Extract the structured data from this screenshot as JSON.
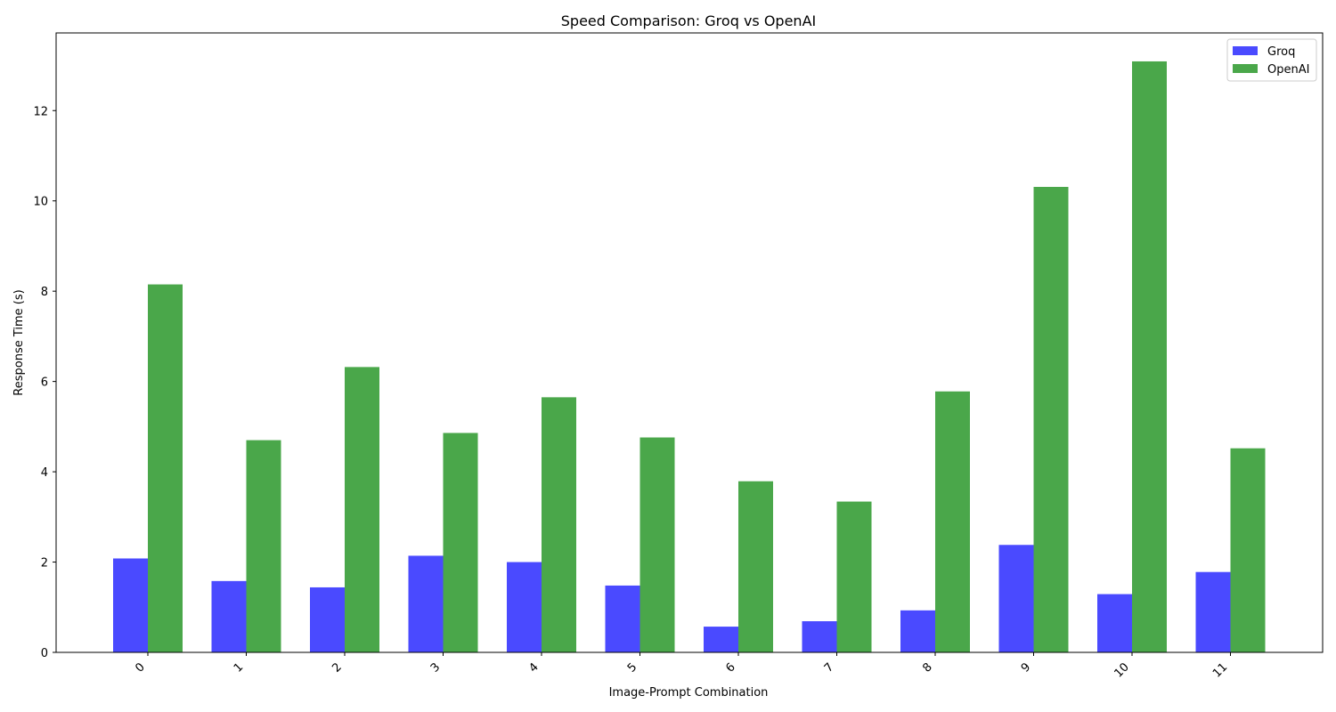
{
  "chart_data": {
    "type": "bar",
    "title": "Speed Comparison: Groq vs OpenAI",
    "xlabel": "Image-Prompt Combination",
    "ylabel": "Response Time (s)",
    "categories": [
      "0",
      "1",
      "2",
      "3",
      "4",
      "5",
      "6",
      "7",
      "8",
      "9",
      "10",
      "11"
    ],
    "series": [
      {
        "name": "Groq",
        "color": "#4a4aff",
        "values": [
          2.08,
          1.58,
          1.44,
          2.14,
          2.0,
          1.48,
          0.57,
          0.69,
          0.93,
          2.38,
          1.29,
          1.78
        ]
      },
      {
        "name": "OpenAI",
        "color": "#4aa74a",
        "values": [
          8.15,
          4.7,
          6.32,
          4.86,
          5.65,
          4.76,
          3.79,
          3.34,
          5.78,
          10.31,
          13.09,
          4.52
        ]
      }
    ],
    "ylim": [
      0,
      13.72
    ],
    "yticks": [
      0,
      2,
      4,
      6,
      8,
      10,
      12
    ],
    "xtick_rotation": 45,
    "legend_position": "top-right",
    "grid": false
  }
}
